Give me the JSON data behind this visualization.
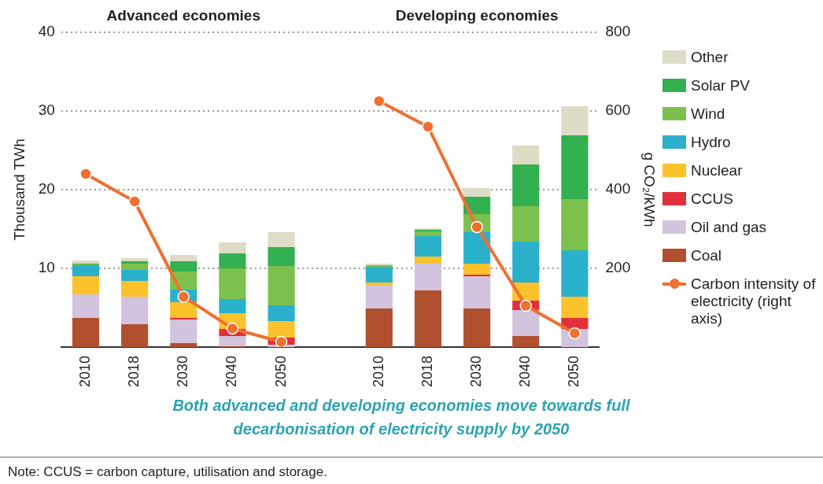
{
  "chart_data": {
    "type": "bar",
    "stacked": true,
    "categories": [
      "2010",
      "2018",
      "2030",
      "2040",
      "2050",
      null,
      "2010",
      "2018",
      "2030",
      "2040",
      "2050"
    ],
    "ylabel": "Thousand TWh",
    "y2label": "g CO₂/kWh",
    "ylim": [
      0,
      40
    ],
    "yticks": [
      10,
      20,
      30,
      40
    ],
    "y2lim": [
      0,
      800
    ],
    "y2ticks": [
      200,
      400,
      600,
      800
    ],
    "grid": "y",
    "legend": "right",
    "annotations": [
      "Advanced economies",
      "Developing economies",
      "Both advanced and developing economies move towards full decarbonisation of electricity supply by 2050",
      "Note: CCUS = carbon capture, utilisation and storage."
    ],
    "series": [
      {
        "name": "Coal",
        "color": "#b0502f",
        "values": [
          3.7,
          2.9,
          0.5,
          0.1,
          0,
          null,
          4.9,
          7.2,
          4.9,
          1.4,
          0
        ]
      },
      {
        "name": "Oil and gas",
        "color": "#d2c3de",
        "values": [
          3.0,
          3.5,
          3.0,
          1.3,
          0.3,
          null,
          2.9,
          3.4,
          4.1,
          3.3,
          2.3
        ]
      },
      {
        "name": "CCUS",
        "color": "#e2303a",
        "values": [
          0,
          0,
          0.2,
          0.9,
          0.9,
          null,
          0,
          0,
          0.2,
          1.2,
          1.4
        ]
      },
      {
        "name": "Nuclear",
        "color": "#fbc22c",
        "values": [
          2.3,
          2.0,
          2.0,
          2.0,
          2.1,
          null,
          0.4,
          0.9,
          1.4,
          2.3,
          2.7
        ]
      },
      {
        "name": "Hydro",
        "color": "#2bb0cc",
        "values": [
          1.4,
          1.4,
          1.6,
          1.8,
          2.0,
          null,
          2.0,
          2.6,
          4.0,
          5.2,
          5.9
        ]
      },
      {
        "name": "Wind",
        "color": "#7cc04d",
        "values": [
          0.1,
          0.8,
          2.3,
          3.9,
          5.0,
          null,
          0.2,
          0.6,
          2.3,
          4.5,
          6.5
        ]
      },
      {
        "name": "Solar PV",
        "color": "#33b04f",
        "values": [
          0.1,
          0.3,
          1.3,
          1.9,
          2.4,
          null,
          0,
          0.2,
          2.2,
          5.3,
          8.1
        ]
      },
      {
        "name": "Other",
        "color": "#dedbc6",
        "values": [
          0.4,
          0.4,
          0.8,
          1.4,
          1.9,
          null,
          0.2,
          0.2,
          1.1,
          2.4,
          3.7
        ]
      },
      {
        "name": "Carbon intensity of electricity (right axis)",
        "type": "line",
        "axis": "y2",
        "marker": "circle",
        "line_style": "solid",
        "color": "#f07030",
        "values": [
          440,
          370,
          128,
          47,
          13,
          null,
          625,
          560,
          305,
          105,
          35
        ]
      }
    ]
  }
}
